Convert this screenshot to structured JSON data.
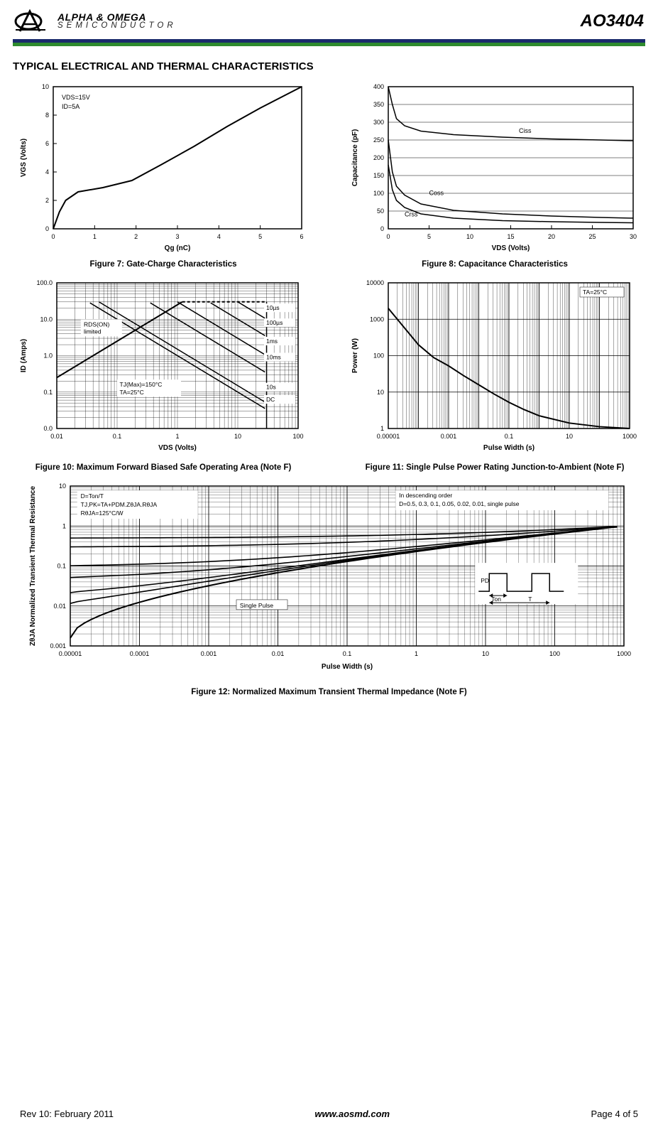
{
  "header": {
    "logo_main": "ALPHA & OMEGA",
    "logo_sub": "SEMICONDUCTOR",
    "part_number": "AO3404"
  },
  "section_title": "TYPICAL ELECTRICAL AND THERMAL CHARACTERISTICS",
  "footer": {
    "left": "Rev 10: February 2011",
    "center": "www.aosmd.com",
    "right": "Page 4 of 5"
  },
  "colors": {
    "axis": "#000000",
    "grid": "#000000",
    "line": "#000000",
    "bg": "#ffffff",
    "stripe_top": "#1a2a6c",
    "stripe_bottom": "#2e8b2e"
  },
  "fig7": {
    "type": "line",
    "title": "Figure 7: Gate-Charge Characteristics",
    "xlabel": "Qg (nC)",
    "ylabel": "VGS (Volts)",
    "x_ticks": [
      0,
      1,
      2,
      3,
      4,
      5,
      6
    ],
    "y_ticks": [
      0,
      2,
      4,
      6,
      8,
      10
    ],
    "xlim": [
      0,
      6
    ],
    "ylim": [
      0,
      10
    ],
    "anno_box": [
      "VDS=15V",
      "ID=5A"
    ],
    "curve": [
      [
        0,
        0
      ],
      [
        0.15,
        1.2
      ],
      [
        0.3,
        2.0
      ],
      [
        0.6,
        2.6
      ],
      [
        1.2,
        2.9
      ],
      [
        1.9,
        3.4
      ],
      [
        2.6,
        4.5
      ],
      [
        3.4,
        5.8
      ],
      [
        4.2,
        7.2
      ],
      [
        5.0,
        8.5
      ],
      [
        5.6,
        9.4
      ],
      [
        6.0,
        10.0
      ]
    ],
    "line_width": 2
  },
  "fig8": {
    "type": "line",
    "title": "Figure 8: Capacitance Characteristics",
    "xlabel": "VDS (Volts)",
    "ylabel": "Capacitance (pF)",
    "x_ticks": [
      0,
      5,
      10,
      15,
      20,
      25,
      30
    ],
    "y_ticks": [
      0,
      50,
      100,
      150,
      200,
      250,
      300,
      350,
      400
    ],
    "xlim": [
      0,
      30
    ],
    "ylim": [
      0,
      400
    ],
    "series": {
      "Ciss": {
        "label": "Ciss",
        "points": [
          [
            0,
            400
          ],
          [
            0.5,
            350
          ],
          [
            1,
            310
          ],
          [
            2,
            290
          ],
          [
            4,
            275
          ],
          [
            8,
            265
          ],
          [
            14,
            258
          ],
          [
            20,
            253
          ],
          [
            26,
            250
          ],
          [
            30,
            248
          ]
        ]
      },
      "Coss": {
        "label": "Coss",
        "points": [
          [
            0,
            250
          ],
          [
            0.5,
            160
          ],
          [
            1,
            120
          ],
          [
            2,
            95
          ],
          [
            4,
            70
          ],
          [
            8,
            52
          ],
          [
            14,
            42
          ],
          [
            20,
            36
          ],
          [
            26,
            32
          ],
          [
            30,
            30
          ]
        ]
      },
      "Crss": {
        "label": "Crss",
        "points": [
          [
            0,
            180
          ],
          [
            0.5,
            110
          ],
          [
            1,
            80
          ],
          [
            2,
            60
          ],
          [
            4,
            42
          ],
          [
            8,
            30
          ],
          [
            14,
            23
          ],
          [
            20,
            20
          ],
          [
            26,
            18
          ],
          [
            30,
            17
          ]
        ]
      }
    },
    "line_width": 1.5
  },
  "fig10": {
    "type": "loglog",
    "title": "Figure 10: Maximum Forward Biased Safe Operating Area (Note F)",
    "xlabel": "VDS (Volts)",
    "ylabel": "ID (Amps)",
    "x_ticks": [
      "0.01",
      "0.1",
      "1",
      "10",
      "100"
    ],
    "y_ticks": [
      "0.0",
      "0.1",
      "1.0",
      "10.0",
      "100.0"
    ],
    "xlim": [
      0.01,
      100
    ],
    "ylim": [
      0.01,
      100
    ],
    "anno_rds": "RDS(ON) limited",
    "anno_temps": [
      "TJ(Max)=150°C",
      "TA=25°C"
    ],
    "pulse_labels": [
      "10µs",
      "100µs",
      "1ms",
      "10ms",
      "10s",
      "DC"
    ],
    "line_width": 1.5
  },
  "fig11": {
    "type": "loglog",
    "title": "Figure 11: Single Pulse Power Rating Junction-to-Ambient (Note F)",
    "xlabel": "Pulse Width (s)",
    "ylabel": "Power (W)",
    "x_ticks": [
      "0.00001",
      "0.001",
      "0.1",
      "10",
      "1000"
    ],
    "y_ticks": [
      "1",
      "10",
      "100",
      "1000",
      "10000"
    ],
    "xlim": [
      1e-05,
      1000
    ],
    "ylim": [
      1,
      10000
    ],
    "anno": "TA=25°C",
    "curve": [
      [
        -5,
        3.3
      ],
      [
        -4.5,
        2.8
      ],
      [
        -4,
        2.3
      ],
      [
        -3.5,
        1.95
      ],
      [
        -3,
        1.72
      ],
      [
        -2.5,
        1.45
      ],
      [
        -2,
        1.2
      ],
      [
        -1.5,
        0.95
      ],
      [
        -1,
        0.72
      ],
      [
        -0.5,
        0.52
      ],
      [
        0,
        0.35
      ],
      [
        1,
        0.15
      ],
      [
        2,
        0.05
      ],
      [
        3,
        0.0
      ]
    ],
    "line_width": 2
  },
  "fig12": {
    "type": "loglog",
    "title": "Figure 12: Normalized Maximum Transient Thermal Impedance (Note F)",
    "xlabel": "Pulse Width (s)",
    "ylabel": "ZθJA Normalized Transient Thermal Resistance",
    "x_ticks": [
      "0.00001",
      "0.0001",
      "0.001",
      "0.01",
      "0.1",
      "1",
      "10",
      "100",
      "1000"
    ],
    "y_ticks": [
      "0.001",
      "0.01",
      "0.1",
      "1",
      "10"
    ],
    "xlim": [
      1e-05,
      1000
    ],
    "ylim": [
      0.001,
      10
    ],
    "anno_left": [
      "D=Ton/T",
      "TJ,PK=TA+PDM.ZθJA.RθJA",
      "RθJA=125°C/W"
    ],
    "anno_right": [
      "In descending order",
      "D=0.5, 0.3, 0.1, 0.05, 0.02, 0.01, single pulse"
    ],
    "anno_single": "Single Pulse",
    "pulse_diag": {
      "PD": "PD",
      "Ton": "Ton",
      "T": "T"
    },
    "duty_values": [
      0.5,
      0.3,
      0.1,
      0.05,
      0.02,
      0.01
    ],
    "line_width": 1.5
  }
}
